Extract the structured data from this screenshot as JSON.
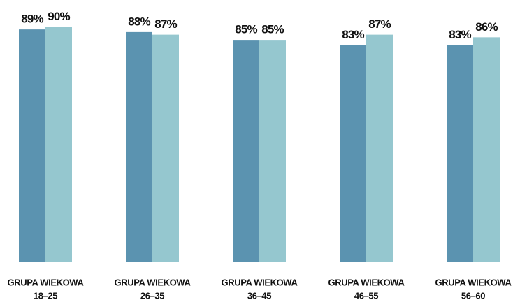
{
  "chart_data": {
    "type": "bar",
    "categories": [
      [
        "GRUPA WIEKOWA",
        "18–25"
      ],
      [
        "GRUPA WIEKOWA",
        "26–35"
      ],
      [
        "GRUPA WIEKOWA",
        "36–45"
      ],
      [
        "GRUPA WIEKOWA",
        "46–55"
      ],
      [
        "GRUPA WIEKOWA",
        "56–60"
      ]
    ],
    "series": [
      {
        "color": "#5b93b0",
        "values": [
          89,
          88,
          85,
          83,
          83
        ],
        "value_labels": [
          "89%",
          "88%",
          "85%",
          "83%",
          "83%"
        ]
      },
      {
        "color": "#95c7cf",
        "values": [
          90,
          87,
          85,
          87,
          86
        ],
        "value_labels": [
          "90%",
          "87%",
          "85%",
          "87%",
          "86%"
        ]
      }
    ],
    "ylim": [
      0,
      100
    ]
  }
}
